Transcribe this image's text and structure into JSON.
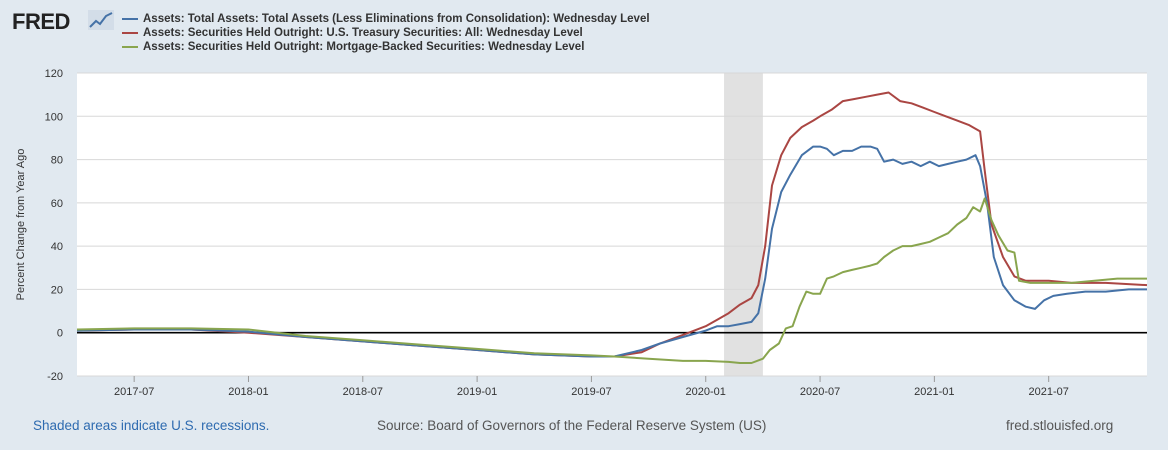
{
  "brand": {
    "logo_text": "FRED"
  },
  "legend": [
    {
      "label": "Assets: Total Assets: Total Assets (Less Eliminations from Consolidation): Wednesday Level",
      "color": "#4572a7"
    },
    {
      "label": "Assets: Securities Held Outright: U.S. Treasury Securities: All: Wednesday Level",
      "color": "#aa4643"
    },
    {
      "label": "Assets: Securities Held Outright: Mortgage-Backed Securities: Wednesday Level",
      "color": "#89a54e"
    }
  ],
  "footer": {
    "recession_note": "Shaded areas indicate U.S. recessions.",
    "source": "Source: Board of Governors of the Federal Reserve System (US)",
    "site": "fred.stlouisfed.org"
  },
  "chart_data": {
    "type": "line",
    "title": "",
    "xlabel": "",
    "ylabel": "Percent Change from Year Ago",
    "xlim": [
      2017.25,
      2021.93
    ],
    "ylim": [
      -20,
      120
    ],
    "yticks": [
      -20,
      0,
      20,
      40,
      60,
      80,
      100,
      120
    ],
    "xticks": [
      {
        "label": "2017-07",
        "x": 2017.5
      },
      {
        "label": "2018-01",
        "x": 2018.0
      },
      {
        "label": "2018-07",
        "x": 2018.5
      },
      {
        "label": "2019-01",
        "x": 2019.0
      },
      {
        "label": "2019-07",
        "x": 2019.5
      },
      {
        "label": "2020-01",
        "x": 2020.0
      },
      {
        "label": "2020-07",
        "x": 2020.5
      },
      {
        "label": "2021-01",
        "x": 2021.0
      },
      {
        "label": "2021-07",
        "x": 2021.5
      }
    ],
    "recessions": [
      {
        "start": 2020.08,
        "end": 2020.25
      }
    ],
    "zero_line": 0,
    "series": [
      {
        "name": "Assets: Total Assets: Total Assets (Less Eliminations from Consolidation): Wednesday Level",
        "color": "#4572a7",
        "points": [
          [
            2017.25,
            1
          ],
          [
            2017.5,
            1.5
          ],
          [
            2017.75,
            1.5
          ],
          [
            2018.0,
            0.5
          ],
          [
            2018.25,
            -2
          ],
          [
            2018.5,
            -4
          ],
          [
            2018.75,
            -6
          ],
          [
            2019.0,
            -8
          ],
          [
            2019.25,
            -10
          ],
          [
            2019.5,
            -11
          ],
          [
            2019.6,
            -11
          ],
          [
            2019.72,
            -8
          ],
          [
            2019.8,
            -5
          ],
          [
            2019.9,
            -2
          ],
          [
            2020.0,
            1
          ],
          [
            2020.05,
            3
          ],
          [
            2020.1,
            3
          ],
          [
            2020.15,
            4
          ],
          [
            2020.2,
            5
          ],
          [
            2020.23,
            9
          ],
          [
            2020.26,
            25
          ],
          [
            2020.29,
            48
          ],
          [
            2020.33,
            65
          ],
          [
            2020.37,
            73
          ],
          [
            2020.42,
            82
          ],
          [
            2020.47,
            86
          ],
          [
            2020.5,
            86
          ],
          [
            2020.53,
            85
          ],
          [
            2020.56,
            82
          ],
          [
            2020.6,
            84
          ],
          [
            2020.64,
            84
          ],
          [
            2020.68,
            86
          ],
          [
            2020.72,
            86
          ],
          [
            2020.75,
            85
          ],
          [
            2020.78,
            79
          ],
          [
            2020.82,
            80
          ],
          [
            2020.86,
            78
          ],
          [
            2020.9,
            79
          ],
          [
            2020.94,
            77
          ],
          [
            2020.98,
            79
          ],
          [
            2021.02,
            77
          ],
          [
            2021.06,
            78
          ],
          [
            2021.1,
            79
          ],
          [
            2021.14,
            80
          ],
          [
            2021.18,
            82
          ],
          [
            2021.2,
            77
          ],
          [
            2021.23,
            60
          ],
          [
            2021.26,
            35
          ],
          [
            2021.3,
            22
          ],
          [
            2021.35,
            15
          ],
          [
            2021.4,
            12
          ],
          [
            2021.44,
            11
          ],
          [
            2021.48,
            15
          ],
          [
            2021.52,
            17
          ],
          [
            2021.58,
            18
          ],
          [
            2021.66,
            19
          ],
          [
            2021.75,
            19
          ],
          [
            2021.85,
            20
          ],
          [
            2021.93,
            20
          ]
        ]
      },
      {
        "name": "Assets: Securities Held Outright: U.S. Treasury Securities: All: Wednesday Level",
        "color": "#aa4643",
        "points": [
          [
            2017.25,
            1
          ],
          [
            2017.5,
            1.5
          ],
          [
            2017.75,
            1.5
          ],
          [
            2018.0,
            0
          ],
          [
            2018.25,
            -2
          ],
          [
            2018.5,
            -4
          ],
          [
            2018.75,
            -6
          ],
          [
            2019.0,
            -8
          ],
          [
            2019.25,
            -10
          ],
          [
            2019.5,
            -11
          ],
          [
            2019.6,
            -11
          ],
          [
            2019.72,
            -9
          ],
          [
            2019.8,
            -5
          ],
          [
            2019.9,
            -1
          ],
          [
            2020.0,
            3
          ],
          [
            2020.05,
            6
          ],
          [
            2020.1,
            9
          ],
          [
            2020.15,
            13
          ],
          [
            2020.2,
            16
          ],
          [
            2020.23,
            22
          ],
          [
            2020.26,
            40
          ],
          [
            2020.29,
            68
          ],
          [
            2020.33,
            82
          ],
          [
            2020.37,
            90
          ],
          [
            2020.42,
            95
          ],
          [
            2020.47,
            98
          ],
          [
            2020.5,
            100
          ],
          [
            2020.55,
            103
          ],
          [
            2020.6,
            107
          ],
          [
            2020.65,
            108
          ],
          [
            2020.7,
            109
          ],
          [
            2020.75,
            110
          ],
          [
            2020.8,
            111
          ],
          [
            2020.85,
            107
          ],
          [
            2020.9,
            106
          ],
          [
            2020.95,
            104
          ],
          [
            2021.0,
            102
          ],
          [
            2021.05,
            100
          ],
          [
            2021.1,
            98
          ],
          [
            2021.15,
            96
          ],
          [
            2021.2,
            93
          ],
          [
            2021.22,
            75
          ],
          [
            2021.25,
            50
          ],
          [
            2021.3,
            35
          ],
          [
            2021.35,
            26
          ],
          [
            2021.4,
            24
          ],
          [
            2021.5,
            24
          ],
          [
            2021.6,
            23
          ],
          [
            2021.75,
            23
          ],
          [
            2021.93,
            22
          ]
        ]
      },
      {
        "name": "Assets: Securities Held Outright: Mortgage-Backed Securities: Wednesday Level",
        "color": "#89a54e",
        "points": [
          [
            2017.25,
            1.5
          ],
          [
            2017.5,
            2
          ],
          [
            2017.75,
            2
          ],
          [
            2018.0,
            1.5
          ],
          [
            2018.25,
            -1.5
          ],
          [
            2018.5,
            -3.5
          ],
          [
            2018.75,
            -5.5
          ],
          [
            2019.0,
            -7.5
          ],
          [
            2019.25,
            -9.5
          ],
          [
            2019.5,
            -10.5
          ],
          [
            2019.6,
            -11
          ],
          [
            2019.75,
            -12
          ],
          [
            2019.9,
            -13
          ],
          [
            2020.0,
            -13
          ],
          [
            2020.1,
            -13.5
          ],
          [
            2020.15,
            -14
          ],
          [
            2020.2,
            -14
          ],
          [
            2020.25,
            -12
          ],
          [
            2020.28,
            -8
          ],
          [
            2020.32,
            -5
          ],
          [
            2020.35,
            2
          ],
          [
            2020.38,
            3
          ],
          [
            2020.41,
            12
          ],
          [
            2020.44,
            19
          ],
          [
            2020.47,
            18
          ],
          [
            2020.5,
            18
          ],
          [
            2020.53,
            25
          ],
          [
            2020.56,
            26
          ],
          [
            2020.6,
            28
          ],
          [
            2020.64,
            29
          ],
          [
            2020.68,
            30
          ],
          [
            2020.72,
            31
          ],
          [
            2020.75,
            32
          ],
          [
            2020.78,
            35
          ],
          [
            2020.82,
            38
          ],
          [
            2020.86,
            40
          ],
          [
            2020.9,
            40
          ],
          [
            2020.94,
            41
          ],
          [
            2020.98,
            42
          ],
          [
            2021.02,
            44
          ],
          [
            2021.06,
            46
          ],
          [
            2021.1,
            50
          ],
          [
            2021.14,
            53
          ],
          [
            2021.17,
            58
          ],
          [
            2021.2,
            56
          ],
          [
            2021.22,
            62
          ],
          [
            2021.25,
            52
          ],
          [
            2021.28,
            45
          ],
          [
            2021.32,
            38
          ],
          [
            2021.35,
            37
          ],
          [
            2021.37,
            24
          ],
          [
            2021.42,
            23
          ],
          [
            2021.5,
            23
          ],
          [
            2021.6,
            23
          ],
          [
            2021.7,
            24
          ],
          [
            2021.8,
            25
          ],
          [
            2021.93,
            25
          ]
        ]
      }
    ]
  }
}
